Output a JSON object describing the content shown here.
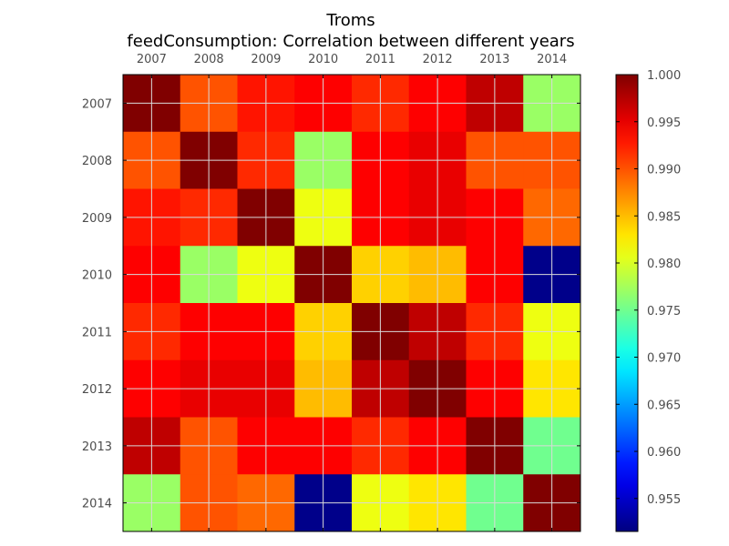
{
  "chart_data": {
    "type": "heatmap",
    "title": "Troms",
    "subtitle": "feedConsumption: Correlation between different years",
    "categories": [
      "2007",
      "2008",
      "2009",
      "2010",
      "2011",
      "2012",
      "2013",
      "2014"
    ],
    "x_ticks_position": "top",
    "values": [
      [
        1.0,
        0.99,
        0.993,
        0.994,
        0.992,
        0.994,
        0.997,
        0.977
      ],
      [
        0.99,
        1.0,
        0.992,
        0.977,
        0.994,
        0.995,
        0.99,
        0.99
      ],
      [
        0.993,
        0.992,
        1.0,
        0.981,
        0.994,
        0.995,
        0.994,
        0.989
      ],
      [
        0.994,
        0.977,
        0.981,
        1.0,
        0.984,
        0.985,
        0.994,
        0.952
      ],
      [
        0.992,
        0.994,
        0.994,
        0.984,
        1.0,
        0.997,
        0.992,
        0.981
      ],
      [
        0.994,
        0.995,
        0.995,
        0.985,
        0.997,
        1.0,
        0.994,
        0.983
      ],
      [
        0.997,
        0.99,
        0.994,
        0.994,
        0.992,
        0.994,
        1.0,
        0.975
      ],
      [
        0.977,
        0.99,
        0.989,
        0.952,
        0.981,
        0.983,
        0.975,
        1.0
      ]
    ],
    "colorbar": {
      "min": 0.9515,
      "max": 1.0,
      "ticks": [
        1.0,
        0.995,
        0.99,
        0.985,
        0.98,
        0.975,
        0.97,
        0.965,
        0.96,
        0.955
      ],
      "tick_labels": [
        "1.000",
        "0.995",
        "0.990",
        "0.985",
        "0.980",
        "0.975",
        "0.970",
        "0.965",
        "0.960",
        "0.955"
      ],
      "colormap": "jet"
    },
    "grid": true
  }
}
